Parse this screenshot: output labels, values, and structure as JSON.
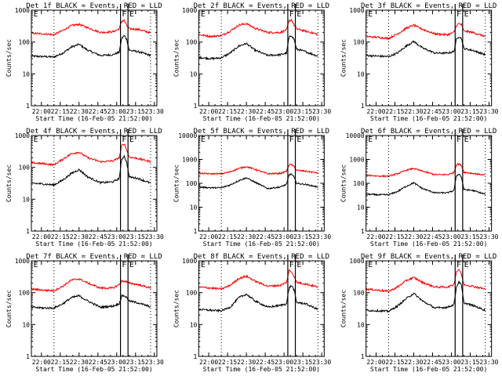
{
  "chart_data": {
    "type": "line",
    "layout": "3x3 grid",
    "xlabel": "Start Time (16-Feb-05 21:52:00)",
    "ylabel": "Counts/sec",
    "yscale": "log",
    "x_range_minutes_from_start": [
      0,
      100
    ],
    "x_tick_labels": [
      "22:00",
      "22:15",
      "22:30",
      "22:45",
      "23:00",
      "23:15",
      "23:30"
    ],
    "x_tick_minutes_from_start": [
      8,
      23,
      38,
      53,
      68,
      83,
      98
    ],
    "markers": {
      "dotted_lines_minutes": [
        18,
        95
      ],
      "solid_lines_minutes": [
        71,
        77
      ],
      "labels": [
        {
          "text": "E",
          "minute": 1
        },
        {
          "text": "F",
          "minute": 71.5
        },
        {
          "text": "E",
          "minute": 77.5
        }
      ]
    },
    "legend": "BLACK = Events, RED = LLD",
    "series_colors": {
      "events": "#000000",
      "lld": "#ff0000"
    },
    "anchor_minutes": [
      0,
      10,
      18,
      25,
      32,
      38,
      45,
      55,
      65,
      70,
      72,
      74,
      76,
      78,
      85,
      95
    ],
    "panels": [
      {
        "title": "Det 1f BLACK = Events, RED = LLD",
        "ylim": [
          1,
          1000
        ],
        "yticks": [
          "1",
          "10",
          "100",
          "1000"
        ],
        "series": [
          {
            "name": "Events",
            "values": [
              36,
              35,
              34,
              45,
              70,
              85,
              55,
              38,
              40,
              48,
              130,
              160,
              120,
              55,
              50,
              38
            ]
          },
          {
            "name": "LLD",
            "values": [
              190,
              180,
              170,
              230,
              330,
              360,
              280,
              200,
              210,
              260,
              450,
              480,
              330,
              260,
              250,
              195
            ]
          }
        ]
      },
      {
        "title": "Det 2f BLACK = Events, RED = LLD",
        "ylim": [
          1,
          1000
        ],
        "yticks": [
          "1",
          "10",
          "100",
          "1000"
        ],
        "series": [
          {
            "name": "Events",
            "values": [
              33,
              30,
              32,
              45,
              75,
              90,
              55,
              38,
              40,
              45,
              140,
              160,
              120,
              60,
              50,
              36
            ]
          },
          {
            "name": "LLD",
            "values": [
              170,
              150,
              160,
              220,
              340,
              380,
              270,
              200,
              200,
              240,
              460,
              500,
              340,
              260,
              220,
              175
            ]
          }
        ]
      },
      {
        "title": "Det 3f BLACK = Events, RED = LLD",
        "ylim": [
          1,
          1000
        ],
        "yticks": [
          "1",
          "10",
          "100",
          "1000"
        ],
        "series": [
          {
            "name": "Events",
            "values": [
              38,
              36,
              35,
              45,
              75,
              105,
              65,
              45,
              45,
              50,
              120,
              150,
              130,
              62,
              55,
              40
            ]
          },
          {
            "name": "LLD",
            "values": [
              150,
              140,
              130,
              180,
              270,
              340,
              250,
              180,
              170,
              200,
              330,
              380,
              350,
              220,
              200,
              150
            ]
          }
        ]
      },
      {
        "title": "Det 4f BLACK = Events, RED = LLD",
        "ylim": [
          1,
          1000
        ],
        "yticks": [
          "1",
          "10",
          "100",
          "1000"
        ],
        "series": [
          {
            "name": "Events",
            "values": [
              32,
              30,
              28,
              40,
              65,
              85,
              50,
              33,
              35,
              45,
              180,
              230,
              140,
              50,
              45,
              32
            ]
          },
          {
            "name": "LLD",
            "values": [
              140,
              130,
              120,
              180,
              270,
              300,
              200,
              150,
              160,
              200,
              480,
              550,
              350,
              210,
              190,
              150
            ]
          }
        ]
      },
      {
        "title": "Det 5f BLACK = Events, RED = LLD",
        "ylim": [
          1,
          10000
        ],
        "yticks": [
          "1",
          "10",
          "100",
          "1000",
          "10000"
        ],
        "series": [
          {
            "name": "Events",
            "values": [
              70,
              65,
              65,
              85,
              130,
              170,
              110,
              60,
              70,
              90,
              230,
              240,
              180,
              100,
              90,
              70
            ]
          },
          {
            "name": "LLD",
            "values": [
              260,
              250,
              250,
              300,
              420,
              500,
              380,
              250,
              260,
              320,
              600,
              600,
              500,
              350,
              320,
              270
            ]
          }
        ]
      },
      {
        "title": "Det 6f BLACK = Events, RED = LLD",
        "ylim": [
          1,
          10000
        ],
        "yticks": [
          "1",
          "10",
          "100",
          "1000",
          "10000"
        ],
        "series": [
          {
            "name": "Events",
            "values": [
              35,
              33,
              33,
              45,
              75,
              105,
              60,
              40,
              40,
              50,
              200,
              250,
              180,
              55,
              50,
              35
            ]
          },
          {
            "name": "LLD",
            "values": [
              220,
              200,
              200,
              250,
              350,
              420,
              320,
              230,
              230,
              280,
              600,
              650,
              550,
              290,
              260,
              220
            ]
          }
        ]
      },
      {
        "title": "Det 7f BLACK = Events, RED = LLD",
        "ylim": [
          1,
          1000
        ],
        "yticks": [
          "1",
          "10",
          "100",
          "1000"
        ],
        "series": [
          {
            "name": "Events",
            "values": [
              35,
              33,
              33,
              45,
              70,
              80,
              55,
              35,
              38,
              45,
              80,
              80,
              70,
              55,
              48,
              36
            ]
          },
          {
            "name": "LLD",
            "values": [
              130,
              120,
              115,
              160,
              250,
              270,
              200,
              140,
              140,
              180,
              230,
              230,
              220,
              200,
              180,
              140
            ]
          }
        ]
      },
      {
        "title": "Det 8f BLACK = Events, RED = LLD",
        "ylim": [
          1,
          1000
        ],
        "yticks": [
          "1",
          "10",
          "100",
          "1000"
        ],
        "series": [
          {
            "name": "Events",
            "values": [
              30,
              28,
              27,
              35,
              70,
              90,
              55,
              35,
              40,
              45,
              140,
              170,
              120,
              50,
              45,
              30
            ]
          },
          {
            "name": "LLD",
            "values": [
              150,
              140,
              130,
              170,
              280,
              330,
              230,
              160,
              170,
              210,
              500,
              450,
              330,
              210,
              190,
              150
            ]
          }
        ]
      },
      {
        "title": "Det 9f BLACK = Events, RED = LLD",
        "ylim": [
          1,
          1000
        ],
        "yticks": [
          "1",
          "10",
          "100",
          "1000"
        ],
        "series": [
          {
            "name": "Events",
            "values": [
              28,
              27,
              26,
              38,
              65,
              95,
              55,
              33,
              35,
              42,
              150,
              220,
              170,
              48,
              40,
              28
            ]
          },
          {
            "name": "LLD",
            "values": [
              130,
              120,
              110,
              150,
              240,
              300,
              210,
              150,
              150,
              180,
              450,
              550,
              380,
              180,
              160,
              130
            ]
          }
        ]
      }
    ]
  }
}
